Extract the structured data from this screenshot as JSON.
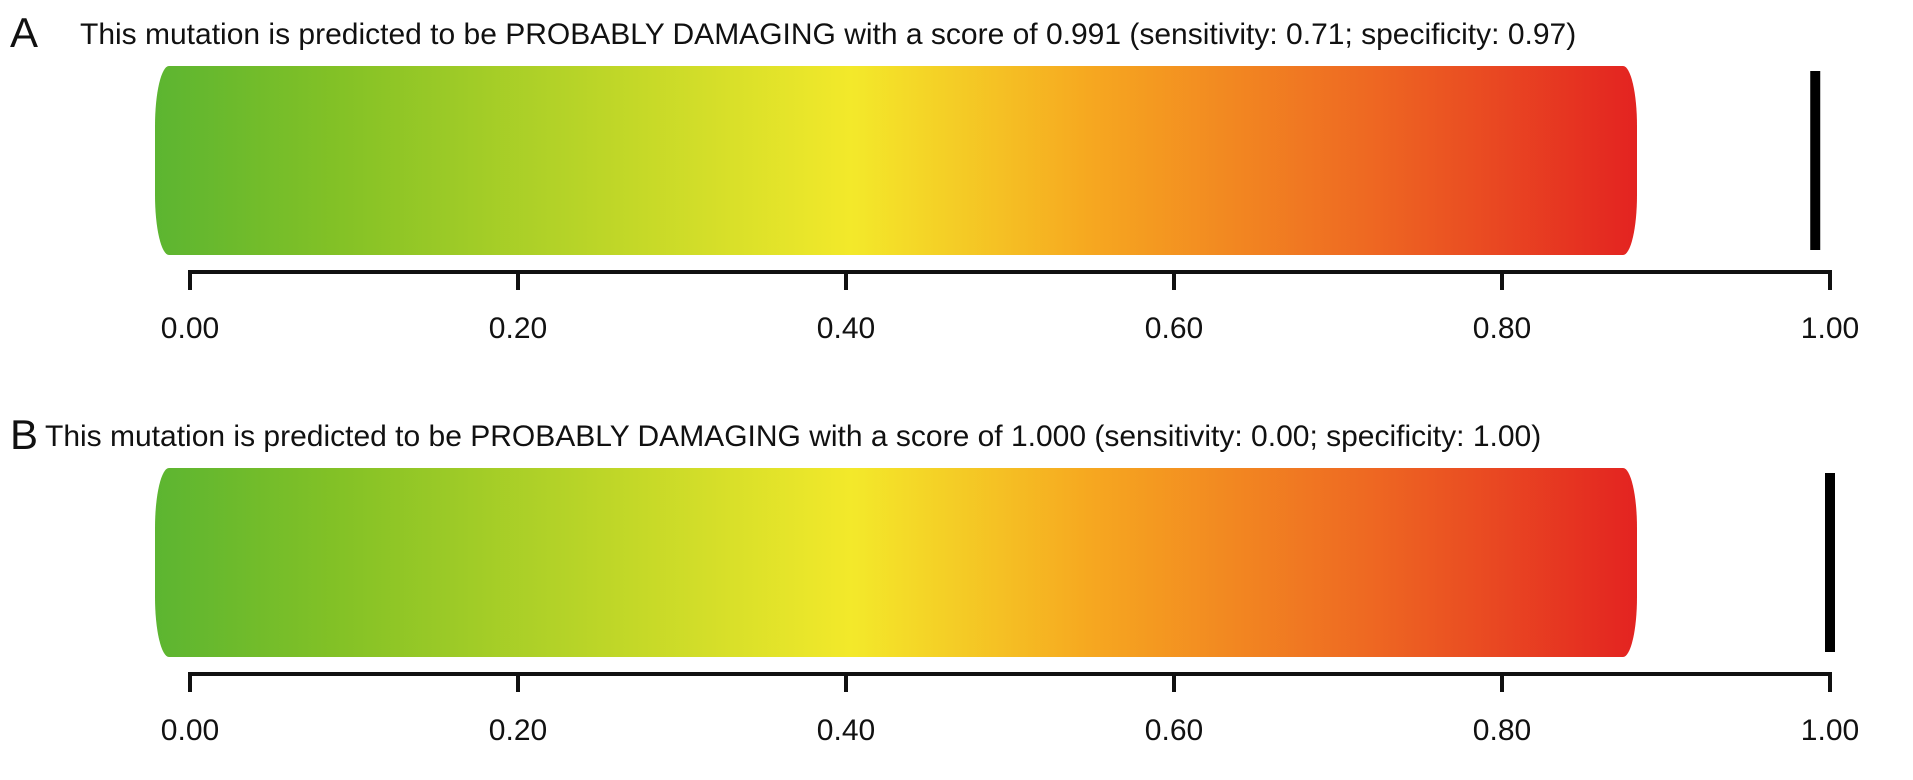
{
  "chart_data": [
    {
      "type": "gauge",
      "panel_label": "A",
      "title": "This mutation is predicted to be PROBABLY DAMAGING with a score of 0.991 (sensitivity: 0.71; specificity: 0.97)",
      "prediction": "PROBABLY DAMAGING",
      "score": 0.991,
      "sensitivity": 0.71,
      "specificity": 0.97,
      "xlim": [
        0,
        1
      ],
      "ticks": [
        0,
        0.2,
        0.4,
        0.6,
        0.8,
        1.0
      ],
      "tick_labels": [
        "0.00",
        "0.20",
        "0.40",
        "0.60",
        "0.80",
        "1.00"
      ],
      "gradient_colors": [
        "#5cb531",
        "#82c126",
        "#f3e92a",
        "#f6a820",
        "#ee6822",
        "#e32321"
      ],
      "marker_color": "#000000"
    },
    {
      "type": "gauge",
      "panel_label": "B",
      "title": "This mutation is predicted to be PROBABLY DAMAGING with a score of 1.000 (sensitivity: 0.00; specificity: 1.00)",
      "prediction": "PROBABLY DAMAGING",
      "score": 1.0,
      "sensitivity": 0.0,
      "specificity": 1.0,
      "xlim": [
        0,
        1
      ],
      "ticks": [
        0,
        0.2,
        0.4,
        0.6,
        0.8,
        1.0
      ],
      "tick_labels": [
        "0.00",
        "0.20",
        "0.40",
        "0.60",
        "0.80",
        "1.00"
      ],
      "gradient_colors": [
        "#5cb531",
        "#82c126",
        "#f3e92a",
        "#f6a820",
        "#ee6822",
        "#e32321"
      ],
      "marker_color": "#000000"
    }
  ]
}
